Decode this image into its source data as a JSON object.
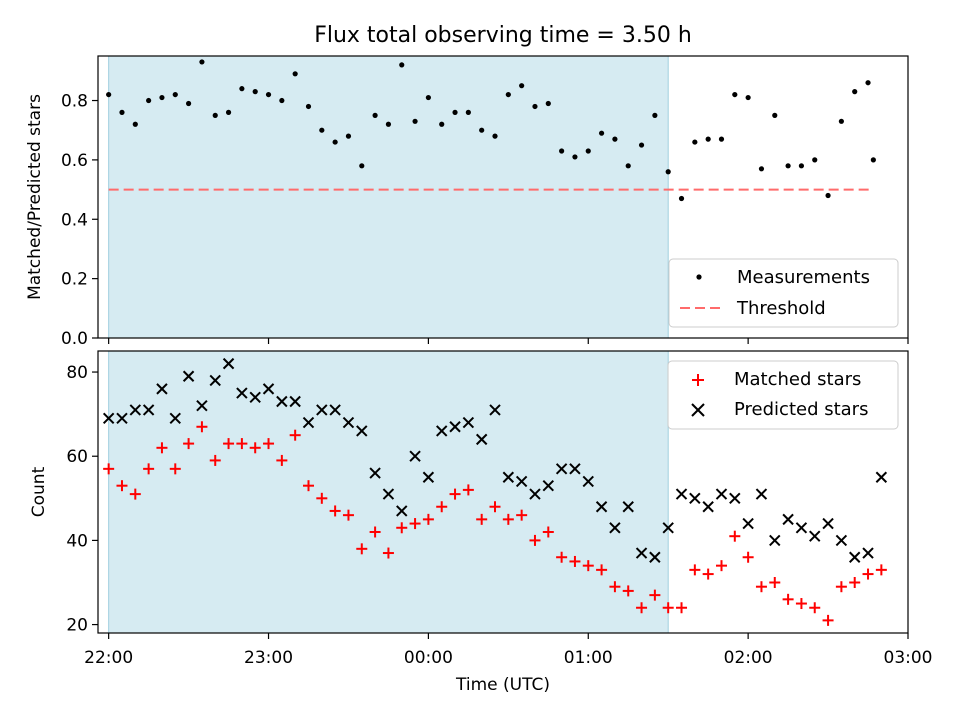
{
  "chart_data": [
    {
      "type": "scatter",
      "title": "Flux total observing time = 3.50 h",
      "ylabel": "Matched/Predicted stars",
      "xlim": [
        "21:56",
        "03:00"
      ],
      "ylim": [
        0,
        0.95
      ],
      "yticks": [
        0.0,
        0.2,
        0.4,
        0.6,
        0.8
      ],
      "ytick_labels": [
        "0.0",
        "0.2",
        "0.4",
        "0.6",
        "0.8"
      ],
      "shaded_span": {
        "x_start": "22:00",
        "x_end": "01:30",
        "color": "#add8e6"
      },
      "threshold": {
        "y": 0.5,
        "x_start": "22:00",
        "x_end": "02:47",
        "color": "#ff6b6b"
      },
      "legend": {
        "position": "lower-right",
        "entries": [
          "Measurements",
          "Threshold"
        ]
      },
      "series": [
        {
          "name": "Measurements",
          "color": "#000000",
          "x": [
            "22:00",
            "22:05",
            "22:10",
            "22:15",
            "22:20",
            "22:25",
            "22:30",
            "22:35",
            "22:40",
            "22:45",
            "22:50",
            "22:55",
            "23:00",
            "23:05",
            "23:10",
            "23:15",
            "23:20",
            "23:25",
            "23:30",
            "23:35",
            "23:40",
            "23:45",
            "23:50",
            "23:55",
            "00:00",
            "00:05",
            "00:10",
            "00:15",
            "00:20",
            "00:25",
            "00:30",
            "00:35",
            "00:40",
            "00:45",
            "00:50",
            "00:55",
            "01:00",
            "01:05",
            "01:10",
            "01:15",
            "01:20",
            "01:25",
            "01:30",
            "01:35",
            "01:40",
            "01:45",
            "01:50",
            "01:55",
            "02:00",
            "02:05",
            "02:10",
            "02:15",
            "02:20",
            "02:25",
            "02:30",
            "02:35",
            "02:40",
            "02:45"
          ],
          "values": [
            0.82,
            0.76,
            0.72,
            0.8,
            0.81,
            0.82,
            0.79,
            0.93,
            0.75,
            0.76,
            0.84,
            0.83,
            0.82,
            0.8,
            0.89,
            0.78,
            0.7,
            0.66,
            0.68,
            0.58,
            0.75,
            0.72,
            0.92,
            0.73,
            0.81,
            0.72,
            0.76,
            0.76,
            0.7,
            0.68,
            0.82,
            0.85,
            0.78,
            0.79,
            0.63,
            0.61,
            0.63,
            0.69,
            0.67,
            0.58,
            0.65,
            0.75,
            0.56,
            0.47,
            0.66,
            0.67,
            0.67,
            0.82,
            0.81,
            0.57,
            0.75,
            0.58,
            0.58,
            0.6,
            0.48,
            0.73,
            0.83,
            0.86
          ]
        }
      ],
      "extra_point": {
        "x": "02:47",
        "y": 0.6
      }
    },
    {
      "type": "scatter",
      "xlabel": "Time (UTC)",
      "ylabel": "Count",
      "xlim": [
        "21:56",
        "03:00"
      ],
      "ylim": [
        18,
        85
      ],
      "xticks": [
        "22:00",
        "23:00",
        "00:00",
        "01:00",
        "02:00",
        "03:00"
      ],
      "yticks": [
        20,
        40,
        60,
        80
      ],
      "ytick_labels": [
        "20",
        "40",
        "60",
        "80"
      ],
      "shaded_span": {
        "x_start": "22:00",
        "x_end": "01:30",
        "color": "#add8e6"
      },
      "legend": {
        "position": "top-right",
        "entries": [
          "Matched stars",
          "Predicted stars"
        ]
      },
      "series": [
        {
          "name": "Matched stars",
          "marker": "+",
          "color": "#ff0000",
          "x": [
            "22:00",
            "22:05",
            "22:10",
            "22:15",
            "22:20",
            "22:25",
            "22:30",
            "22:35",
            "22:40",
            "22:45",
            "22:50",
            "22:55",
            "23:00",
            "23:05",
            "23:10",
            "23:15",
            "23:20",
            "23:25",
            "23:30",
            "23:35",
            "23:40",
            "23:45",
            "23:50",
            "23:55",
            "00:00",
            "00:05",
            "00:10",
            "00:15",
            "00:20",
            "00:25",
            "00:30",
            "00:35",
            "00:40",
            "00:45",
            "00:50",
            "00:55",
            "01:00",
            "01:05",
            "01:10",
            "01:15",
            "01:20",
            "01:25",
            "01:30",
            "01:35",
            "01:40",
            "01:45",
            "01:50",
            "01:55",
            "02:00",
            "02:05",
            "02:10",
            "02:15",
            "02:20",
            "02:25",
            "02:30",
            "02:35",
            "02:40",
            "02:45",
            "02:50"
          ],
          "values": [
            57,
            53,
            51,
            57,
            62,
            57,
            63,
            67,
            59,
            63,
            63,
            62,
            63,
            59,
            65,
            53,
            50,
            47,
            46,
            38,
            42,
            37,
            43,
            44,
            45,
            48,
            51,
            52,
            45,
            48,
            45,
            46,
            40,
            42,
            36,
            35,
            34,
            33,
            29,
            28,
            24,
            27,
            24,
            24,
            33,
            32,
            34,
            41,
            36,
            29,
            30,
            26,
            25,
            24,
            21,
            29,
            30,
            32,
            33
          ]
        },
        {
          "name": "Predicted stars",
          "marker": "x",
          "color": "#000000",
          "x": [
            "22:00",
            "22:05",
            "22:10",
            "22:15",
            "22:20",
            "22:25",
            "22:30",
            "22:35",
            "22:40",
            "22:45",
            "22:50",
            "22:55",
            "23:00",
            "23:05",
            "23:10",
            "23:15",
            "23:20",
            "23:25",
            "23:30",
            "23:35",
            "23:40",
            "23:45",
            "23:50",
            "23:55",
            "00:00",
            "00:05",
            "00:10",
            "00:15",
            "00:20",
            "00:25",
            "00:30",
            "00:35",
            "00:40",
            "00:45",
            "00:50",
            "00:55",
            "01:00",
            "01:05",
            "01:10",
            "01:15",
            "01:20",
            "01:25",
            "01:30",
            "01:35",
            "01:40",
            "01:45",
            "01:50",
            "01:55",
            "02:00",
            "02:05",
            "02:10",
            "02:15",
            "02:20",
            "02:25",
            "02:30",
            "02:35",
            "02:40",
            "02:45",
            "02:50"
          ],
          "values": [
            69,
            69,
            71,
            71,
            76,
            69,
            79,
            72,
            78,
            82,
            75,
            74,
            76,
            73,
            73,
            68,
            71,
            71,
            68,
            66,
            56,
            51,
            47,
            60,
            55,
            66,
            67,
            68,
            64,
            71,
            55,
            54,
            51,
            53,
            57,
            57,
            54,
            48,
            43,
            48,
            37,
            36,
            43,
            51,
            50,
            48,
            51,
            50,
            44,
            51,
            40,
            45,
            43,
            41,
            44,
            40,
            36,
            37,
            55
          ]
        }
      ]
    }
  ]
}
